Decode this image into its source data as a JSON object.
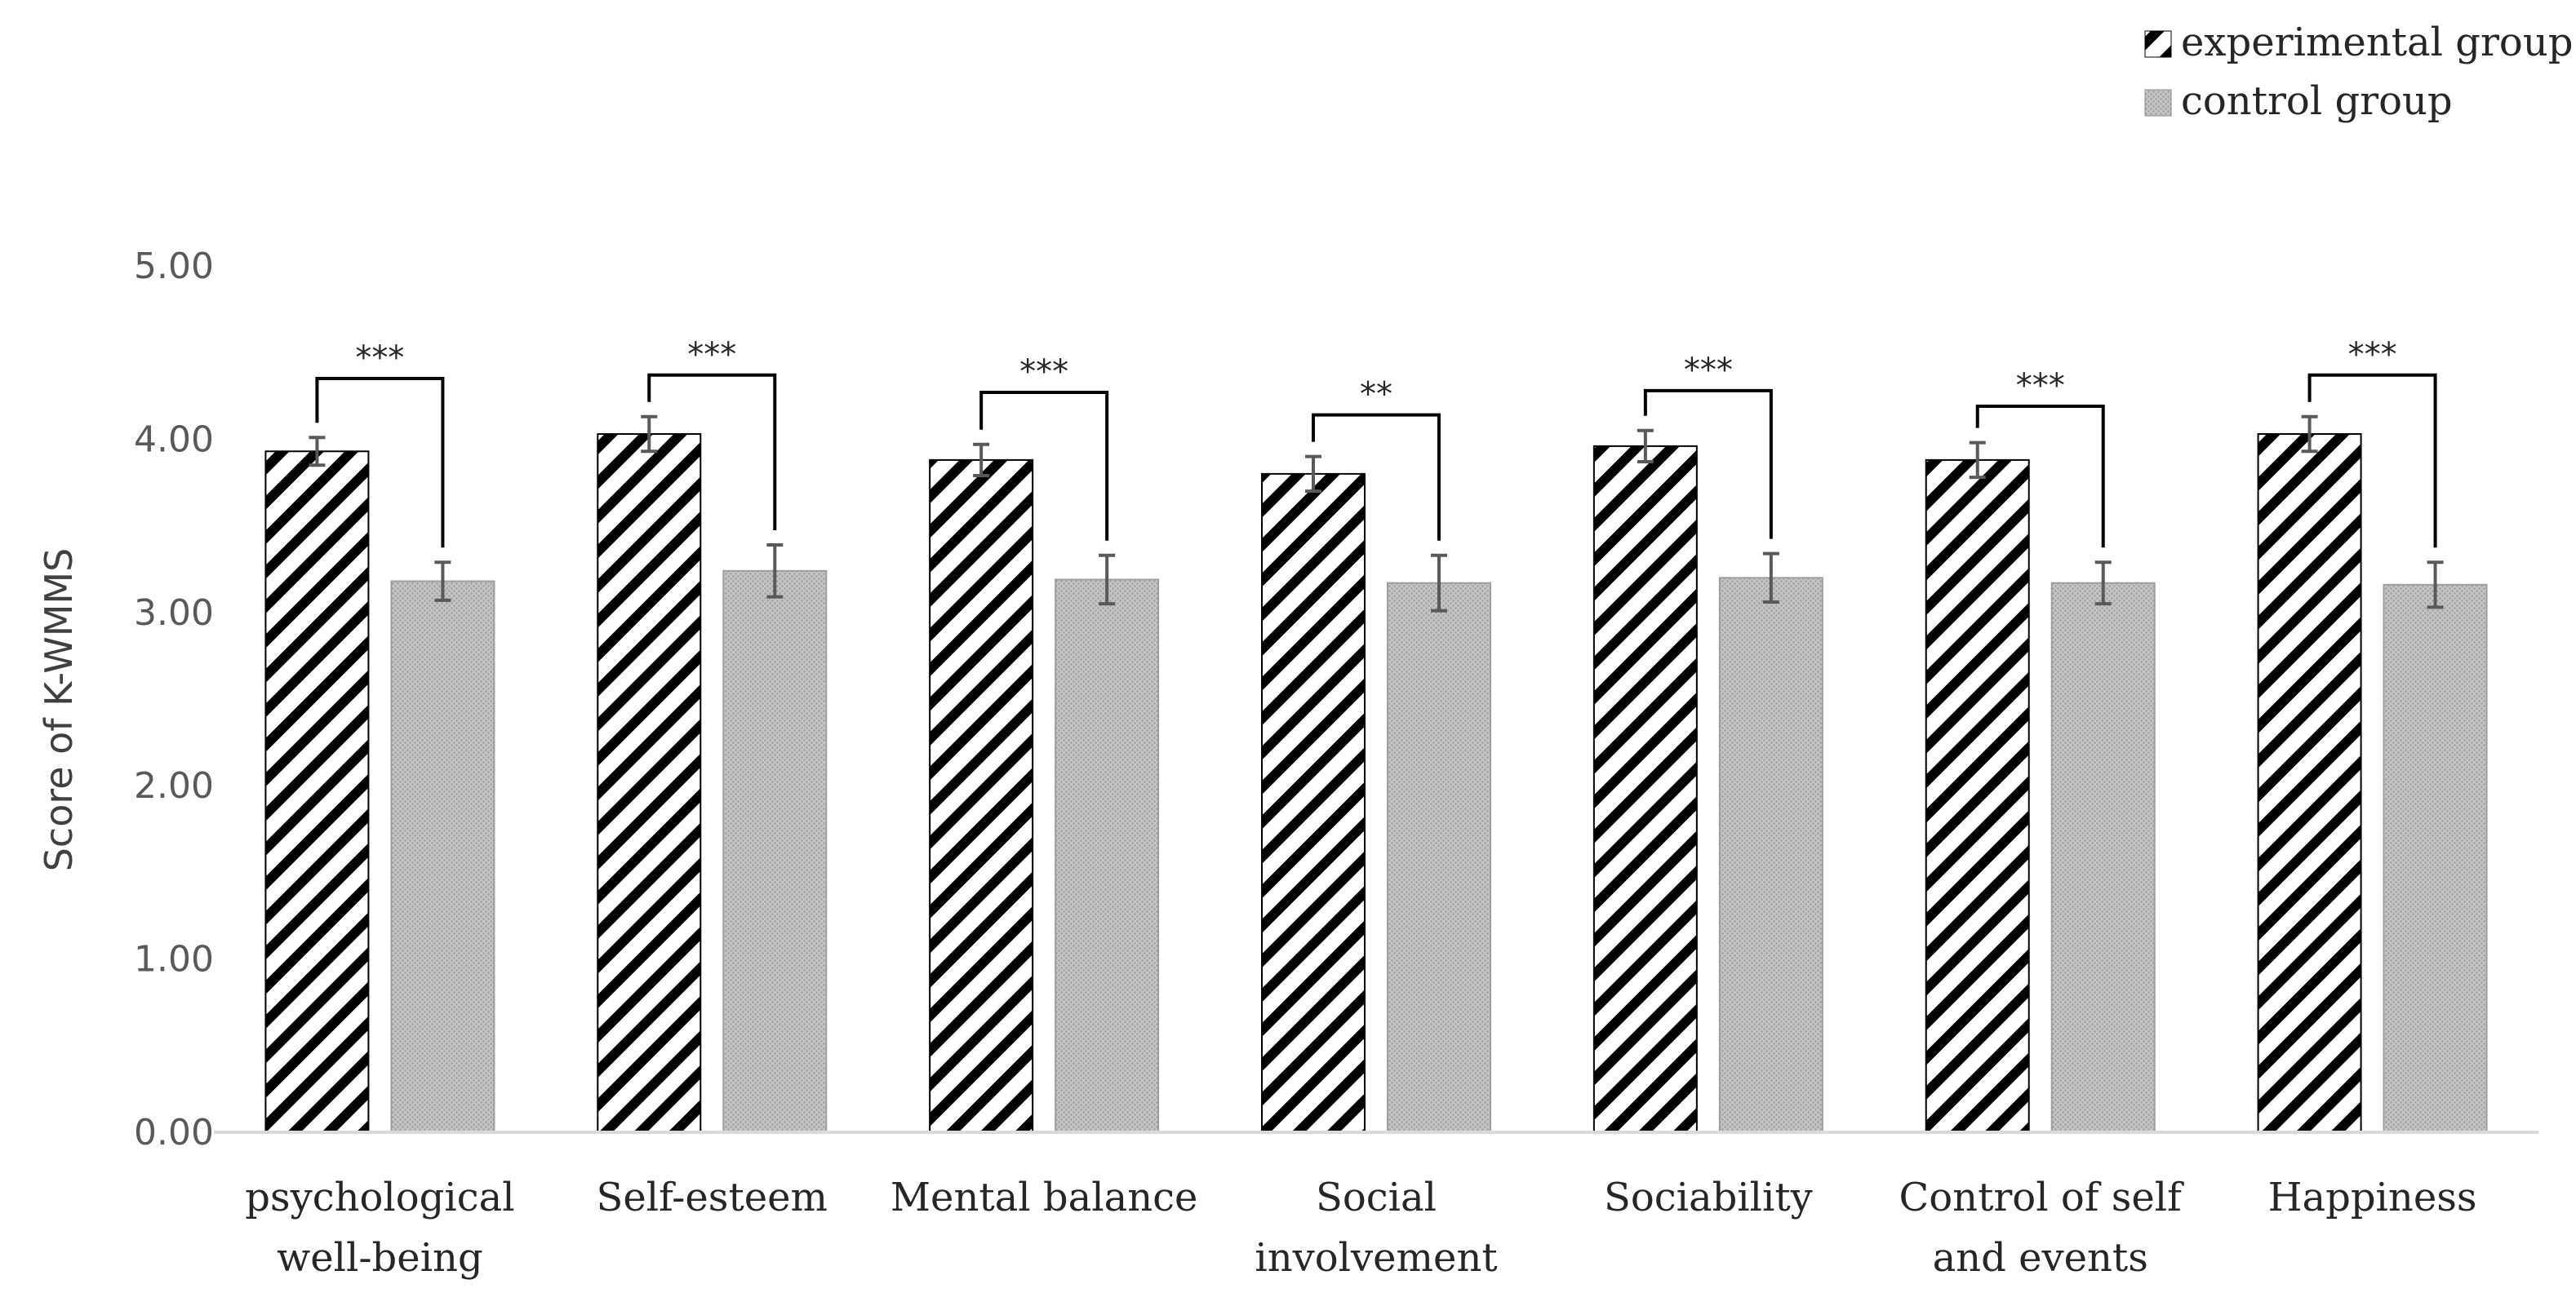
{
  "chart_data": {
    "type": "bar",
    "title": "",
    "xlabel": "",
    "ylabel": "Score of K-WMMS",
    "ylim": [
      0,
      5
    ],
    "y_ticks": [
      "0.00",
      "1.00",
      "2.00",
      "3.00",
      "4.00",
      "5.00"
    ],
    "categories": [
      [
        "psychological",
        "well-being"
      ],
      [
        "Self-esteem"
      ],
      [
        "Mental balance"
      ],
      [
        "Social",
        "involvement"
      ],
      [
        "Sociability"
      ],
      [
        "Control of self",
        "and events"
      ],
      [
        "Happiness"
      ]
    ],
    "series": [
      {
        "name": "experimental group",
        "pattern": "diagonal-hatch",
        "values": [
          3.93,
          4.03,
          3.88,
          3.8,
          3.96,
          3.88,
          4.03
        ],
        "errors": [
          0.08,
          0.1,
          0.09,
          0.1,
          0.09,
          0.1,
          0.1
        ]
      },
      {
        "name": "control group",
        "pattern": "dotted-gray",
        "values": [
          3.18,
          3.24,
          3.19,
          3.17,
          3.2,
          3.17,
          3.16
        ],
        "errors": [
          0.11,
          0.15,
          0.14,
          0.16,
          0.14,
          0.12,
          0.13
        ]
      }
    ],
    "significance": [
      "***",
      "***",
      "***",
      "**",
      "***",
      "***",
      "***"
    ],
    "significance_bracket_level": [
      4.35,
      4.37,
      4.27,
      4.14,
      4.28,
      4.19,
      4.37
    ],
    "legend_position": "top-right",
    "grid": false,
    "colors": {
      "hatch": "#000000",
      "control_fill": "#bdbdbd",
      "axis": "#d9d9d9",
      "text": "#262626"
    }
  }
}
